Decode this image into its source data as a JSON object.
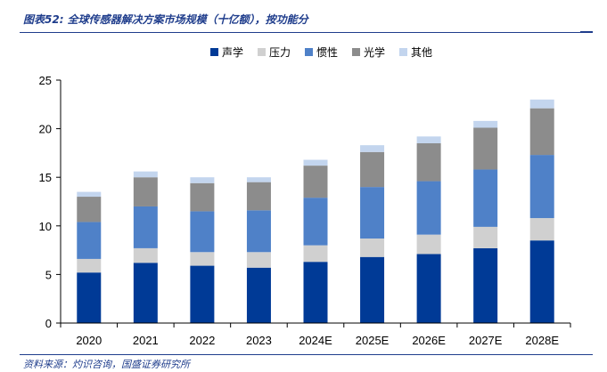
{
  "figure": {
    "caption": "图表52: 全球传感器解决方案市场规模（十亿额），按功能分",
    "source": "资料来源：灼识咨询，国盛证券研究所"
  },
  "chart_data": {
    "type": "bar",
    "stacked": true,
    "title": "全球传感器解决方案市场规模（十亿额），按功能分",
    "xlabel": "",
    "ylabel": "",
    "ylim": [
      0,
      25
    ],
    "yticks": [
      0,
      5,
      10,
      15,
      20,
      25
    ],
    "grid": false,
    "legend_position": "top-center",
    "categories": [
      "2020",
      "2021",
      "2022",
      "2023",
      "2024E",
      "2025E",
      "2026E",
      "2027E",
      "2028E"
    ],
    "series": [
      {
        "name": "声学",
        "color": "#003a96",
        "values": [
          5.2,
          6.2,
          5.9,
          5.7,
          6.3,
          6.8,
          7.1,
          7.7,
          8.5
        ]
      },
      {
        "name": "压力",
        "color": "#d0d0d0",
        "values": [
          1.4,
          1.5,
          1.4,
          1.6,
          1.7,
          1.9,
          2.0,
          2.2,
          2.3
        ]
      },
      {
        "name": "惯性",
        "color": "#4f81c8",
        "values": [
          3.8,
          4.3,
          4.2,
          4.3,
          4.9,
          5.3,
          5.5,
          5.9,
          6.5
        ]
      },
      {
        "name": "光学",
        "color": "#8c8c8c",
        "values": [
          2.6,
          3.0,
          2.9,
          2.9,
          3.3,
          3.6,
          3.9,
          4.3,
          4.8
        ]
      },
      {
        "name": "其他",
        "color": "#c3d5ee",
        "values": [
          0.5,
          0.6,
          0.6,
          0.5,
          0.6,
          0.7,
          0.7,
          0.7,
          0.9
        ]
      }
    ]
  }
}
